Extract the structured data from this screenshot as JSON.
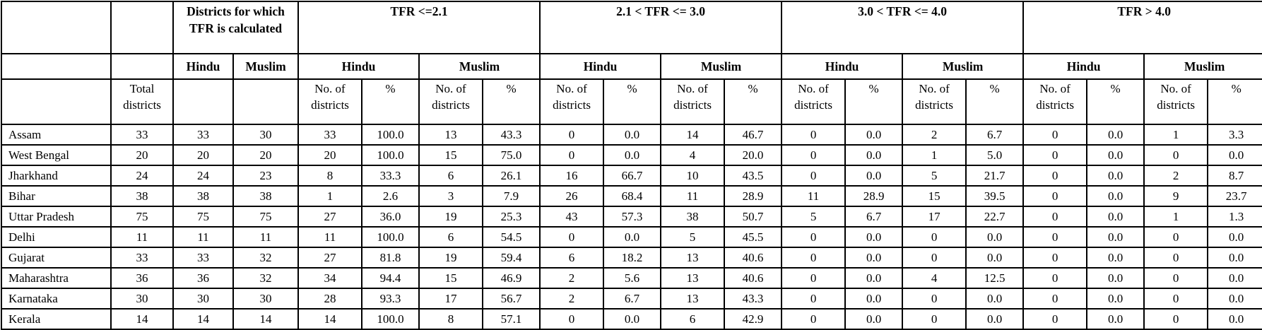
{
  "table": {
    "labels": {
      "districts_calculated": "Districts for which TFR is calculated",
      "total_districts": "Total districts",
      "hindu": "Hindu",
      "muslim": "Muslim",
      "no_of_districts": "No. of districts",
      "percent": "%"
    },
    "tfr_groups": [
      "TFR <=2.1",
      "2.1 < TFR <= 3.0",
      "3.0 < TFR <= 4.0",
      "TFR > 4.0"
    ]
  },
  "chart_data": {
    "type": "table",
    "title": "",
    "columns": [
      "",
      "Total districts",
      "Districts for which TFR is calculated - Hindu",
      "Districts for which TFR is calculated - Muslim",
      "TFR <=2.1 - Hindu - No. of districts",
      "TFR <=2.1 - Hindu - %",
      "TFR <=2.1 - Muslim - No. of districts",
      "TFR <=2.1 - Muslim - %",
      "2.1 < TFR <= 3.0 - Hindu - No. of districts",
      "2.1 < TFR <= 3.0 - Hindu - %",
      "2.1 < TFR <= 3.0 - Muslim - No. of districts",
      "2.1 < TFR <= 3.0 - Muslim - %",
      "3.0 < TFR <= 4.0 - Hindu - No. of districts",
      "3.0 < TFR <= 4.0 - Hindu - %",
      "3.0 < TFR <= 4.0 - Muslim - No. of districts",
      "3.0 < TFR <= 4.0 - Muslim - %",
      "TFR > 4.0 - Hindu - No. of districts",
      "TFR > 4.0 - Hindu - %",
      "TFR > 4.0 - Muslim - No. of districts",
      "TFR > 4.0 - Muslim - %"
    ],
    "rows": [
      [
        "Assam",
        "33",
        "33",
        "30",
        "33",
        "100.0",
        "13",
        "43.3",
        "0",
        "0.0",
        "14",
        "46.7",
        "0",
        "0.0",
        "2",
        "6.7",
        "0",
        "0.0",
        "1",
        "3.3"
      ],
      [
        "West Bengal",
        "20",
        "20",
        "20",
        "20",
        "100.0",
        "15",
        "75.0",
        "0",
        "0.0",
        "4",
        "20.0",
        "0",
        "0.0",
        "1",
        "5.0",
        "0",
        "0.0",
        "0",
        "0.0"
      ],
      [
        "Jharkhand",
        "24",
        "24",
        "23",
        "8",
        "33.3",
        "6",
        "26.1",
        "16",
        "66.7",
        "10",
        "43.5",
        "0",
        "0.0",
        "5",
        "21.7",
        "0",
        "0.0",
        "2",
        "8.7"
      ],
      [
        "Bihar",
        "38",
        "38",
        "38",
        "1",
        "2.6",
        "3",
        "7.9",
        "26",
        "68.4",
        "11",
        "28.9",
        "11",
        "28.9",
        "15",
        "39.5",
        "0",
        "0.0",
        "9",
        "23.7"
      ],
      [
        "Uttar Pradesh",
        "75",
        "75",
        "75",
        "27",
        "36.0",
        "19",
        "25.3",
        "43",
        "57.3",
        "38",
        "50.7",
        "5",
        "6.7",
        "17",
        "22.7",
        "0",
        "0.0",
        "1",
        "1.3"
      ],
      [
        "Delhi",
        "11",
        "11",
        "11",
        "11",
        "100.0",
        "6",
        "54.5",
        "0",
        "0.0",
        "5",
        "45.5",
        "0",
        "0.0",
        "0",
        "0.0",
        "0",
        "0.0",
        "0",
        "0.0"
      ],
      [
        "Gujarat",
        "33",
        "33",
        "32",
        "27",
        "81.8",
        "19",
        "59.4",
        "6",
        "18.2",
        "13",
        "40.6",
        "0",
        "0.0",
        "0",
        "0.0",
        "0",
        "0.0",
        "0",
        "0.0"
      ],
      [
        "Maharashtra",
        "36",
        "36",
        "32",
        "34",
        "94.4",
        "15",
        "46.9",
        "2",
        "5.6",
        "13",
        "40.6",
        "0",
        "0.0",
        "4",
        "12.5",
        "0",
        "0.0",
        "0",
        "0.0"
      ],
      [
        "Karnataka",
        "30",
        "30",
        "30",
        "28",
        "93.3",
        "17",
        "56.7",
        "2",
        "6.7",
        "13",
        "43.3",
        "0",
        "0.0",
        "0",
        "0.0",
        "0",
        "0.0",
        "0",
        "0.0"
      ],
      [
        "Kerala",
        "14",
        "14",
        "14",
        "14",
        "100.0",
        "8",
        "57.1",
        "0",
        "0.0",
        "6",
        "42.9",
        "0",
        "0.0",
        "0",
        "0.0",
        "0",
        "0.0",
        "0",
        "0.0"
      ]
    ]
  }
}
